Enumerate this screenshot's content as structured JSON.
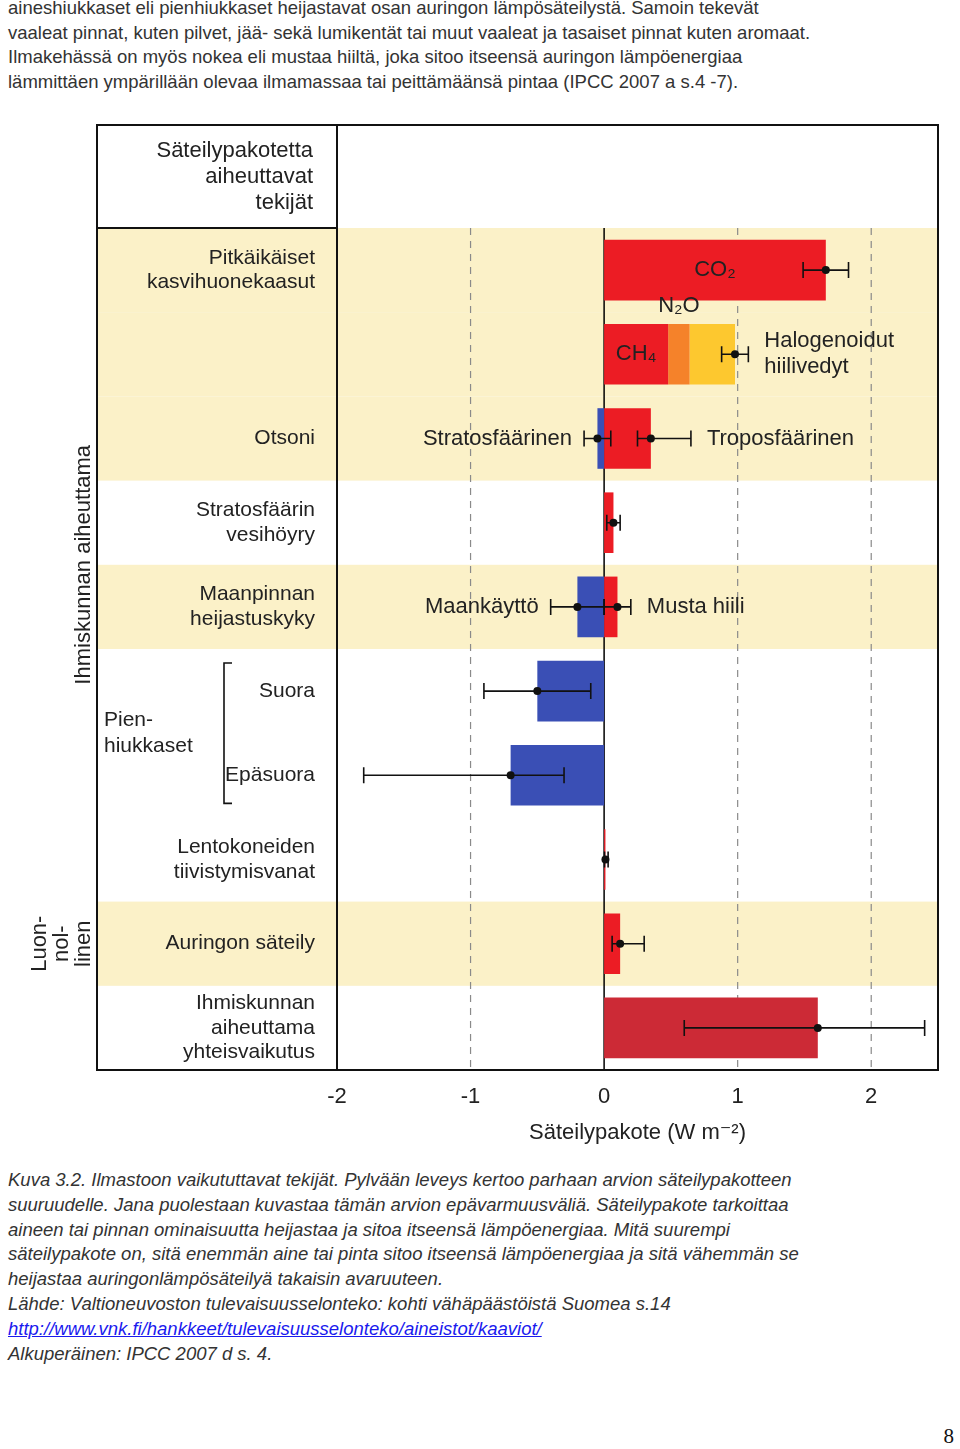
{
  "text_above": [
    "aineshiukkaset eli pienhiukkaset heijastavat osan auringon lämpösäteilystä. Samoin tekevät",
    "vaaleat pinnat, kuten pilvet, jää- sekä lumikentät tai muut vaaleat ja tasaiset pinnat kuten aromaat.",
    "Ilmakehässä on myös nokea eli mustaa hiiltä, joka sitoo itseensä auringon lämpöenergiaa",
    "lämmittäen ympärillään olevaa ilmamassaa tai peittämäänsä pintaa (IPCC 2007 a s.4 -7)."
  ],
  "chart_data": {
    "type": "bar",
    "orientation": "horizontal",
    "stacked": true,
    "grid": true,
    "y_header": "Säteilypakotetta aiheuttavat tekijät",
    "categories": [
      "Pitkäikäiset kasvihuonekaasut",
      null,
      "Otsoni",
      "Stratosfäärin vesihöyry",
      "Maanpinnan heijastuskyky",
      "Suora",
      "Epäsuora",
      "Lentokoneiden tiivistymisvanat",
      "Auringon säteily",
      "Ihmiskunnan aiheuttama yhteisvaikutus"
    ],
    "side_groups": [
      {
        "lines": [
          "Ihmiskunnan aiheuttama"
        ],
        "span": [
          0,
          7
        ]
      },
      {
        "lines": [
          "Luon-",
          "nol-",
          "linen"
        ],
        "span": [
          8,
          8
        ]
      }
    ],
    "bracket_groups": [
      {
        "lines": [
          "Pien-",
          "hiukkaset"
        ],
        "span": [
          5,
          6
        ]
      }
    ],
    "x_label": "Säteilypakote (W m⁻²)",
    "xlim": [
      -2,
      2.5
    ],
    "xticks": [
      -2,
      -1,
      0,
      1,
      2
    ],
    "series": [
      {
        "name": "CO₂",
        "color": "#ec1c24",
        "values": [
          1.66,
          null,
          null,
          null,
          null,
          null,
          null,
          null,
          null,
          null
        ],
        "errors": [
          [
            1.49,
            1.83
          ],
          null,
          null,
          null,
          null,
          null,
          null,
          null,
          null,
          null
        ]
      },
      {
        "name": "CH₄",
        "color": "#ec1c24",
        "values": [
          null,
          0.48,
          null,
          null,
          null,
          null,
          null,
          null,
          null,
          null
        ],
        "errors": [
          null,
          null,
          null,
          null,
          null,
          null,
          null,
          null,
          null,
          null
        ]
      },
      {
        "name": "N₂O",
        "color": "#f5822a",
        "values": [
          null,
          0.16,
          null,
          null,
          null,
          null,
          null,
          null,
          null,
          null
        ],
        "errors": [
          null,
          null,
          null,
          null,
          null,
          null,
          null,
          null,
          null,
          null
        ]
      },
      {
        "name": "Halogenoidut hiilivedyt",
        "color": "#fdc82f",
        "values": [
          null,
          0.34,
          null,
          null,
          null,
          null,
          null,
          null,
          null,
          null
        ],
        "errors": [
          null,
          [
            0.88,
            1.08
          ],
          null,
          null,
          null,
          null,
          null,
          null,
          null,
          null
        ]
      },
      {
        "name": "Stratosfäärinen",
        "color": "#3a4fb5",
        "values": [
          null,
          null,
          -0.05,
          null,
          null,
          null,
          null,
          null,
          null,
          null
        ],
        "errors": [
          null,
          null,
          [
            -0.15,
            0.05
          ],
          null,
          null,
          null,
          null,
          null,
          null,
          null
        ]
      },
      {
        "name": "Troposfäärinen",
        "color": "#ec1c24",
        "values": [
          null,
          null,
          0.35,
          null,
          null,
          null,
          null,
          null,
          null,
          null
        ],
        "errors": [
          null,
          null,
          [
            0.25,
            0.65
          ],
          null,
          null,
          null,
          null,
          null,
          null,
          null
        ]
      },
      {
        "color": "#ec1c24",
        "values": [
          null,
          null,
          null,
          0.07,
          null,
          null,
          null,
          0.01,
          0.12,
          null
        ],
        "errors": [
          null,
          null,
          null,
          [
            0.02,
            0.12
          ],
          null,
          null,
          null,
          [
            0.003,
            0.03
          ],
          [
            0.06,
            0.3
          ],
          null
        ]
      },
      {
        "name": "Maankäyttö",
        "color": "#3a4fb5",
        "values": [
          null,
          null,
          null,
          null,
          -0.2,
          null,
          null,
          null,
          null,
          null
        ],
        "errors": [
          null,
          null,
          null,
          null,
          [
            -0.4,
            0.0
          ],
          null,
          null,
          null,
          null,
          null
        ]
      },
      {
        "name": "Musta hiili",
        "color": "#ec1c24",
        "values": [
          null,
          null,
          null,
          null,
          0.1,
          null,
          null,
          null,
          null,
          null
        ],
        "errors": [
          null,
          null,
          null,
          null,
          [
            0.0,
            0.2
          ],
          null,
          null,
          null,
          null,
          null
        ]
      },
      {
        "color": "#3a4fb5",
        "values": [
          null,
          null,
          null,
          null,
          null,
          -0.5,
          -0.7,
          null,
          null,
          null
        ],
        "errors": [
          null,
          null,
          null,
          null,
          null,
          [
            -0.9,
            -0.1
          ],
          [
            -1.8,
            -0.3
          ],
          null,
          null,
          null
        ]
      },
      {
        "color": "#cc2a36",
        "values": [
          null,
          null,
          null,
          null,
          null,
          null,
          null,
          null,
          null,
          1.6
        ],
        "errors": [
          null,
          null,
          null,
          null,
          null,
          null,
          null,
          null,
          null,
          [
            0.6,
            2.4
          ]
        ]
      }
    ]
  },
  "caption_lines": [
    "Kuva 3.2. Ilmastoon vaikututtavat tekijät.  Pylvään leveys kertoo parhaan arvion säteilypakotteen",
    "suuruudelle. Jana puolestaan kuvastaa tämän arvion epävarmuusväliä. Säteilypakote tarkoittaa",
    "aineen tai pinnan ominaisuutta heijastaa ja sitoa itseensä lämpöenergiaa. Mitä suurempi",
    "säteilypakote on, sitä enemmän aine tai pinta sitoo itseensä lämpöenergiaa ja sitä vähemmän se",
    "heijastaa auringonlämpösäteilyä takaisin avaruuteen."
  ],
  "source": "Lähde: Valtioneuvoston tulevaisuusselonteko: kohti vähäpäästöistä Suomea s.14",
  "link": "http://www.vnk.fi/hankkeet/tulevaisuusselonteko/aineistot/kaaviot/",
  "original_source": "Alkuperäinen: IPCC 2007 d s. 4.",
  "page_number": "8"
}
